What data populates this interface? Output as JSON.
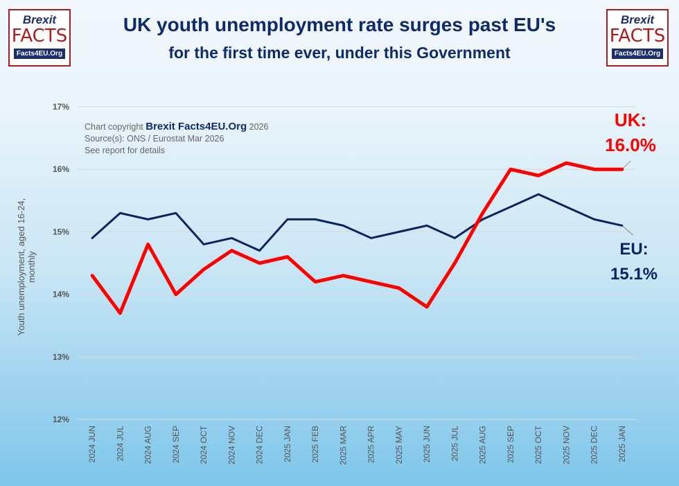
{
  "title": "UK youth unemployment rate surges past EU's",
  "subtitle": "for the first time ever, under this Government",
  "logo": {
    "top": "Brexit",
    "middle": "FACTS",
    "bottom": "Facts4EU.Org"
  },
  "copyright": {
    "prefix": "Chart copyright",
    "brand": "Brexit Facts4EU.Org",
    "year": "2026",
    "source": "Source(s): ONS / Eurostat Mar 2026",
    "note": "See report for details"
  },
  "colors": {
    "uk": "#ff0000",
    "eu": "#0d2260",
    "title": "#0f2a6b"
  },
  "chart_data": {
    "type": "line",
    "ylabel": "Youth unemployment, aged 16-24, monthly",
    "ylim": [
      12,
      17
    ],
    "yticks": [
      "12%",
      "13%",
      "14%",
      "15%",
      "16%",
      "17%"
    ],
    "grid": true,
    "categories": [
      "2024 JUN",
      "2024 JUL",
      "2024 AUG",
      "2024 SEP",
      "2024 OCT",
      "2024 NOV",
      "2024 DEC",
      "2025 JAN",
      "2025 FEB",
      "2025 MAR",
      "2025 APR",
      "2025 MAY",
      "2025 JUN",
      "2025 JUL",
      "2025 AUG",
      "2025 SEP",
      "2025 OCT",
      "2025 NOV",
      "2025 DEC",
      "2025 JAN"
    ],
    "series": [
      {
        "name": "UK",
        "values": [
          14.3,
          13.7,
          14.8,
          14.0,
          14.4,
          14.7,
          14.5,
          14.6,
          14.2,
          14.3,
          14.2,
          14.1,
          13.8,
          14.5,
          15.3,
          16.0,
          15.9,
          16.1,
          16.0,
          16.0
        ]
      },
      {
        "name": "EU",
        "values": [
          14.9,
          15.3,
          15.2,
          15.3,
          14.8,
          14.9,
          14.7,
          15.2,
          15.2,
          15.1,
          14.9,
          15.0,
          15.1,
          14.9,
          15.2,
          15.4,
          15.6,
          15.4,
          15.2,
          15.1
        ]
      }
    ],
    "annotations": {
      "uk_label": "UK:",
      "uk_value": "16.0%",
      "eu_label": "EU:",
      "eu_value": "15.1%"
    }
  }
}
